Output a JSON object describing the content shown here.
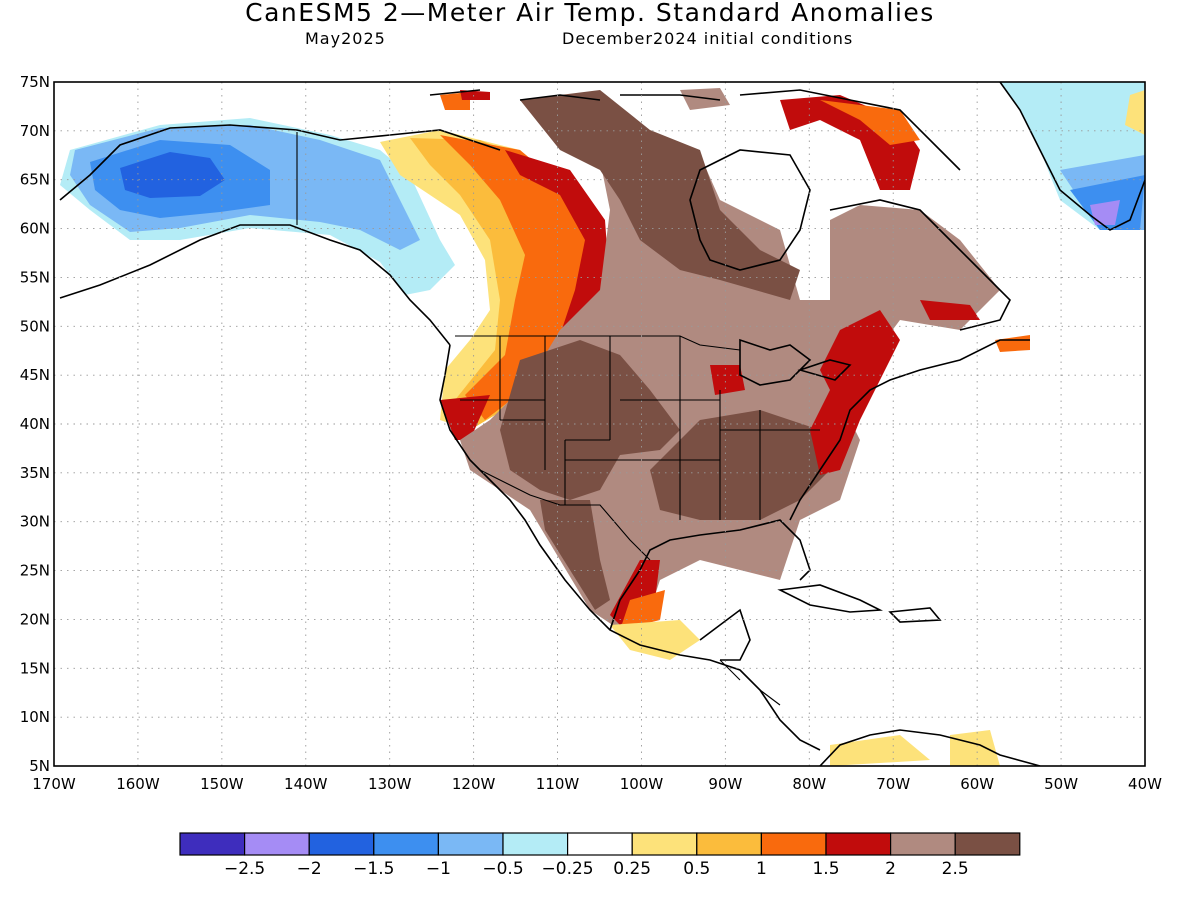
{
  "title": "CanESM5 2—Meter Air Temp. Standard Anomalies",
  "valid_month": "May2025",
  "initial_conditions": "December2024 initial conditions",
  "lat_labels": [
    "75N",
    "70N",
    "65N",
    "60N",
    "55N",
    "50N",
    "45N",
    "40N",
    "35N",
    "30N",
    "25N",
    "20N",
    "15N",
    "10N",
    "5N"
  ],
  "lon_labels": [
    "170W",
    "160W",
    "150W",
    "140W",
    "130W",
    "120W",
    "110W",
    "100W",
    "90W",
    "80W",
    "70W",
    "60W",
    "50W",
    "40W"
  ],
  "colorbar": {
    "colors": [
      "#3e2dbd",
      "#a58cf5",
      "#2262e0",
      "#3d8ff0",
      "#7ab8f5",
      "#b4ecf6",
      "#ffffff",
      "#fde27a",
      "#fbbc3c",
      "#f96a0d",
      "#c10c0c",
      "#b08a80",
      "#7a5044"
    ],
    "labels": [
      "−2.5",
      "−2",
      "−1.5",
      "−1",
      "−0.5",
      "−0.25",
      "0.25",
      "0.5",
      "1",
      "1.5",
      "2",
      "2.5"
    ]
  }
}
